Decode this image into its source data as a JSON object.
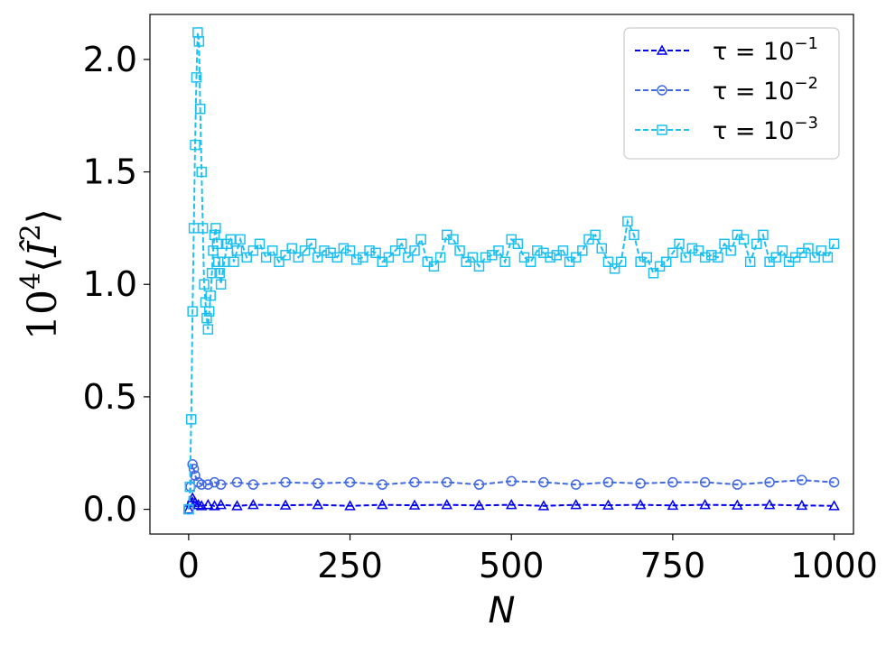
{
  "chart_data": {
    "type": "line",
    "title": "",
    "xlabel": "N",
    "ylabel_text": {
      "base": "10",
      "exp": "4",
      "left": "⟨",
      "symbol": "Î",
      "sup": "2",
      "right": "⟩"
    },
    "xlim": [
      -60,
      1030
    ],
    "ylim": [
      -0.11,
      2.2
    ],
    "x_ticks": [
      0,
      250,
      500,
      750,
      1000
    ],
    "x_tick_labels": [
      "0",
      "250",
      "500",
      "750",
      "1000"
    ],
    "y_ticks": [
      0.0,
      0.5,
      1.0,
      1.5,
      2.0
    ],
    "y_tick_labels": [
      "0.0",
      "0.5",
      "1.0",
      "1.5",
      "2.0"
    ],
    "grid": false,
    "legend_position": "top-right",
    "series": [
      {
        "label_prefix": "τ = 10",
        "label_exp": "−1",
        "color": "#0000ee",
        "marker": "triangle",
        "linestyle": "dashed",
        "x": [
          0,
          3,
          6,
          10,
          15,
          20,
          30,
          40,
          50,
          75,
          100,
          150,
          200,
          250,
          300,
          350,
          400,
          450,
          500,
          550,
          600,
          650,
          700,
          750,
          800,
          850,
          900,
          950,
          1000
        ],
        "y": [
          0.0,
          0.03,
          0.05,
          0.03,
          0.02,
          0.015,
          0.02,
          0.015,
          0.02,
          0.015,
          0.02,
          0.018,
          0.02,
          0.015,
          0.02,
          0.018,
          0.02,
          0.017,
          0.02,
          0.015,
          0.02,
          0.018,
          0.02,
          0.017,
          0.02,
          0.018,
          0.02,
          0.017,
          0.015
        ]
      },
      {
        "label_prefix": "τ = 10",
        "label_exp": "−2",
        "color": "#4169e1",
        "marker": "circle",
        "linestyle": "dashed",
        "x": [
          0,
          3,
          6,
          8,
          10,
          15,
          20,
          30,
          40,
          50,
          75,
          100,
          150,
          200,
          250,
          300,
          350,
          400,
          450,
          500,
          550,
          600,
          650,
          700,
          750,
          800,
          850,
          900,
          950,
          1000
        ],
        "y": [
          0.0,
          0.1,
          0.2,
          0.18,
          0.15,
          0.12,
          0.11,
          0.11,
          0.12,
          0.11,
          0.12,
          0.11,
          0.12,
          0.115,
          0.12,
          0.11,
          0.12,
          0.12,
          0.11,
          0.125,
          0.12,
          0.11,
          0.12,
          0.115,
          0.12,
          0.12,
          0.11,
          0.12,
          0.13,
          0.12
        ]
      },
      {
        "label_prefix": "τ = 10",
        "label_exp": "−3",
        "color": "#1ec0f0",
        "marker": "square",
        "linestyle": "dashed",
        "x": [
          0,
          2,
          4,
          6,
          8,
          10,
          12,
          14,
          16,
          18,
          20,
          22,
          24,
          26,
          28,
          30,
          32,
          34,
          36,
          38,
          40,
          42,
          44,
          46,
          48,
          50,
          55,
          60,
          65,
          70,
          75,
          80,
          90,
          100,
          110,
          120,
          130,
          140,
          150,
          160,
          170,
          180,
          190,
          200,
          210,
          220,
          230,
          240,
          250,
          260,
          270,
          280,
          290,
          300,
          310,
          320,
          330,
          340,
          350,
          360,
          370,
          380,
          390,
          400,
          410,
          420,
          430,
          440,
          450,
          460,
          470,
          480,
          490,
          500,
          510,
          520,
          530,
          540,
          550,
          560,
          570,
          580,
          590,
          600,
          610,
          620,
          630,
          640,
          650,
          660,
          670,
          680,
          690,
          700,
          710,
          720,
          730,
          740,
          750,
          760,
          770,
          780,
          790,
          800,
          810,
          820,
          830,
          840,
          850,
          860,
          870,
          880,
          890,
          900,
          910,
          920,
          930,
          940,
          950,
          960,
          970,
          980,
          990,
          1000
        ],
        "y": [
          0.0,
          0.1,
          0.4,
          0.88,
          1.25,
          1.62,
          1.92,
          2.12,
          2.08,
          1.78,
          1.5,
          1.25,
          1.0,
          0.92,
          0.85,
          0.8,
          0.88,
          0.95,
          1.05,
          1.15,
          1.22,
          1.25,
          1.18,
          1.1,
          1.05,
          1.0,
          1.1,
          1.18,
          1.2,
          1.1,
          1.15,
          1.2,
          1.12,
          1.15,
          1.18,
          1.12,
          1.15,
          1.1,
          1.13,
          1.16,
          1.12,
          1.15,
          1.18,
          1.12,
          1.15,
          1.14,
          1.12,
          1.16,
          1.15,
          1.11,
          1.12,
          1.15,
          1.14,
          1.1,
          1.12,
          1.15,
          1.18,
          1.12,
          1.15,
          1.2,
          1.1,
          1.08,
          1.12,
          1.22,
          1.2,
          1.15,
          1.1,
          1.12,
          1.08,
          1.12,
          1.13,
          1.15,
          1.1,
          1.2,
          1.18,
          1.12,
          1.1,
          1.15,
          1.14,
          1.12,
          1.13,
          1.15,
          1.1,
          1.12,
          1.15,
          1.2,
          1.22,
          1.16,
          1.1,
          1.07,
          1.1,
          1.28,
          1.22,
          1.1,
          1.12,
          1.05,
          1.08,
          1.1,
          1.14,
          1.18,
          1.12,
          1.16,
          1.15,
          1.12,
          1.13,
          1.12,
          1.18,
          1.15,
          1.22,
          1.2,
          1.1,
          1.18,
          1.22,
          1.1,
          1.12,
          1.15,
          1.1,
          1.12,
          1.14,
          1.16,
          1.12,
          1.15,
          1.12,
          1.18
        ]
      }
    ]
  }
}
